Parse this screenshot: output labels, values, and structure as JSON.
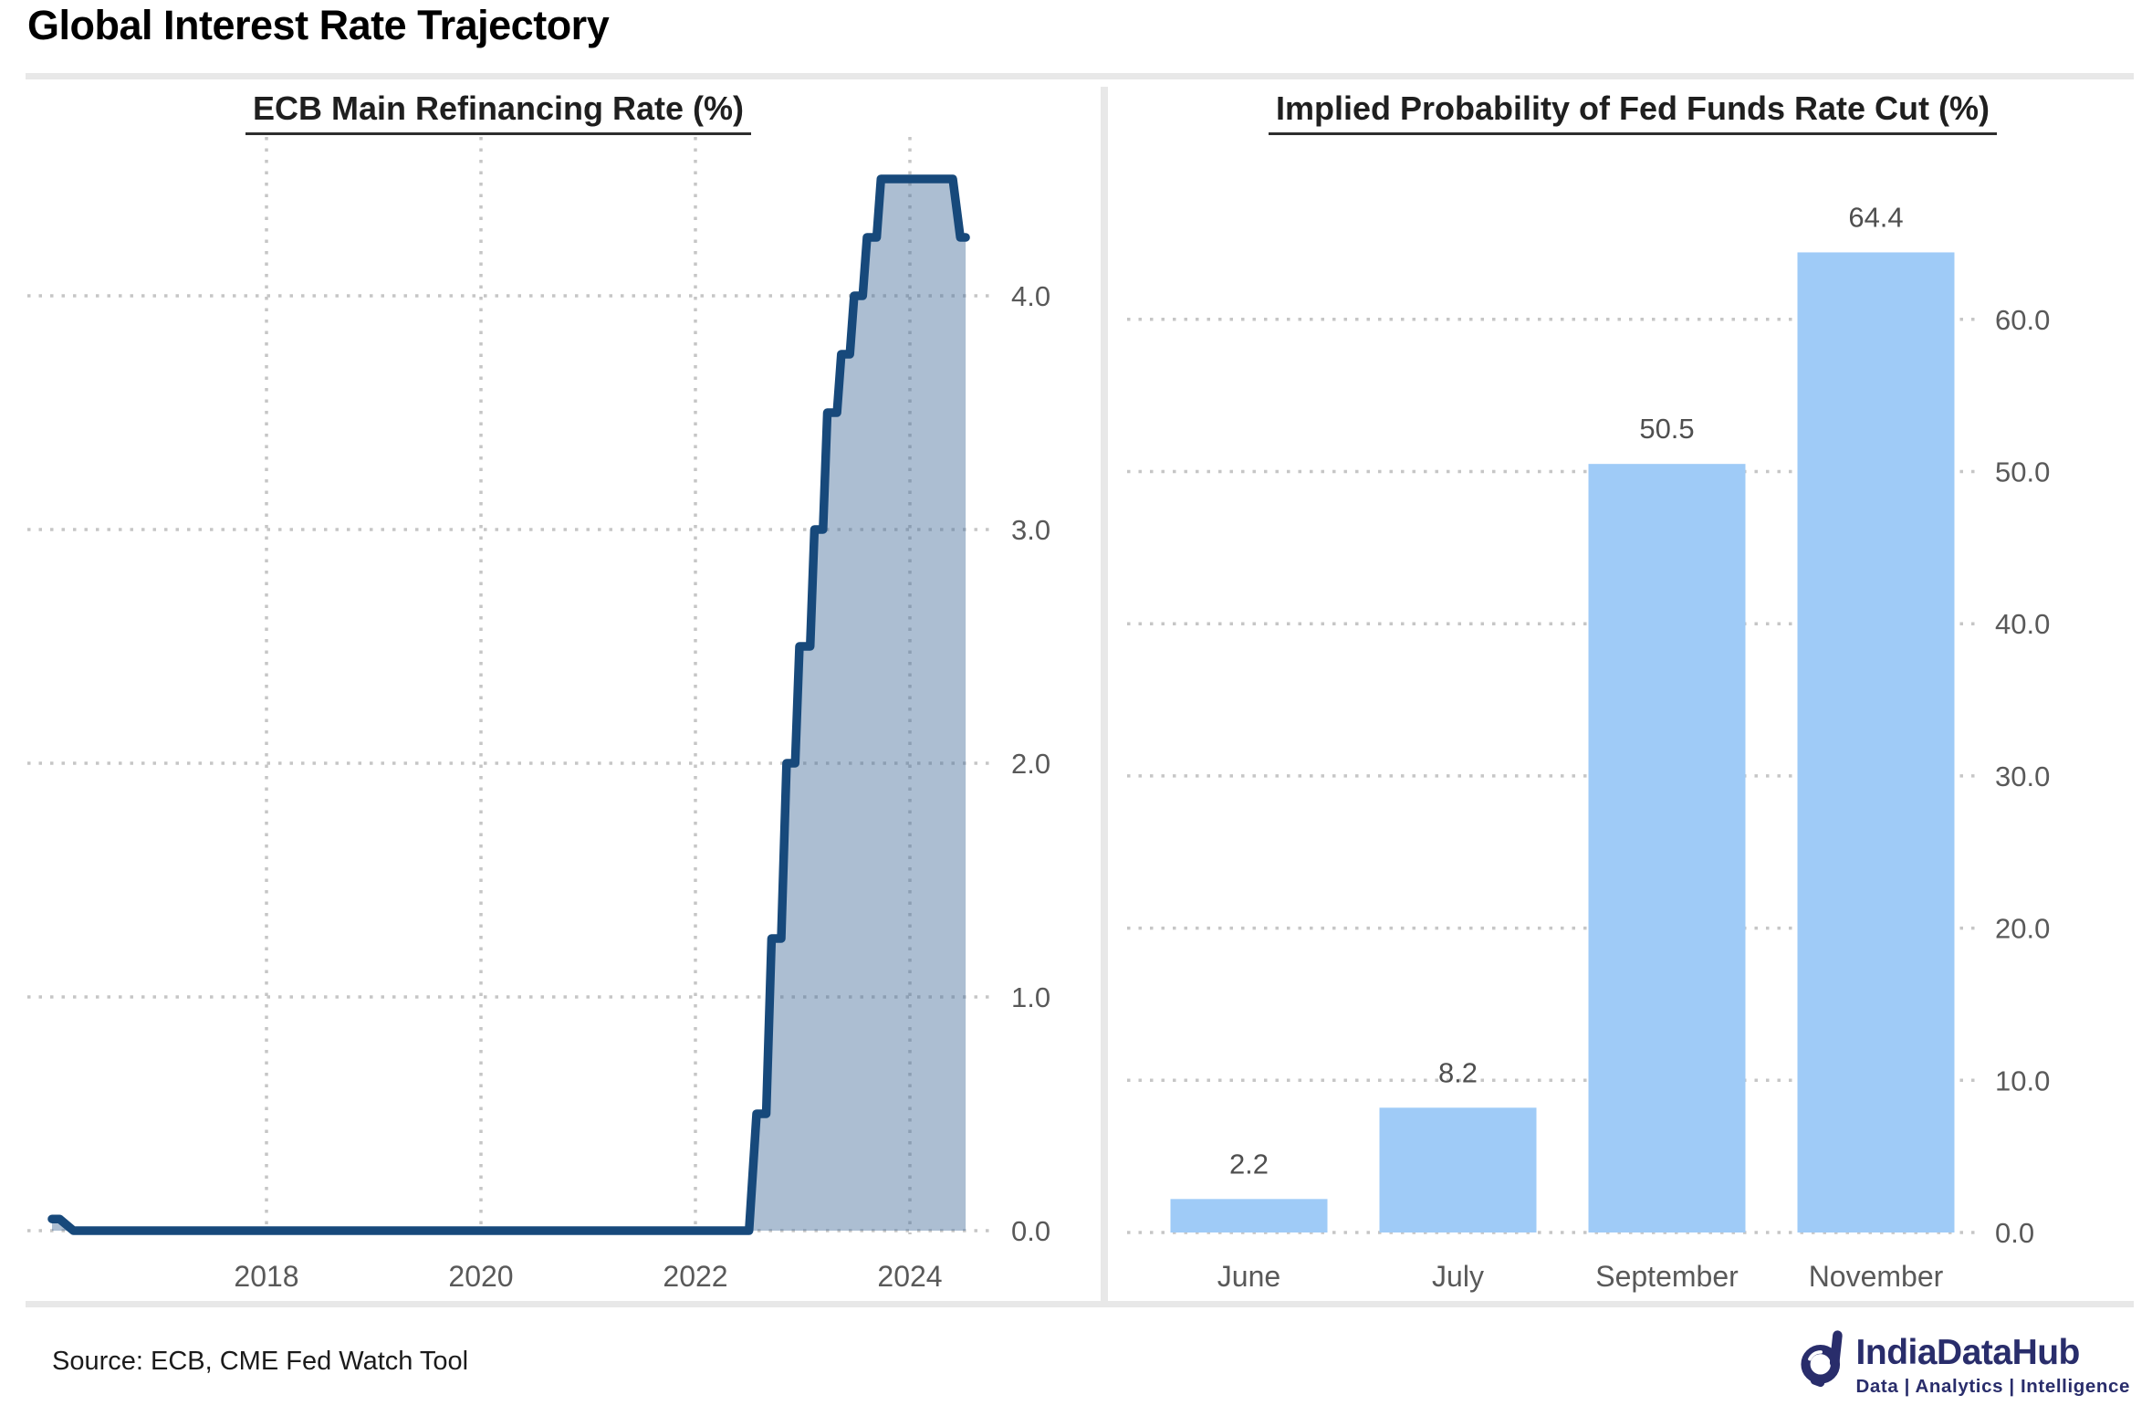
{
  "header": {
    "title": "Global Interest Rate Trajectory"
  },
  "colors": {
    "line": "#17497b",
    "area_fill": "rgba(70,110,155,0.45)",
    "bar": "#9fcbf7",
    "gridline": "#c6c6c6",
    "tick_text": "#595959",
    "divider": "#e8e8e8",
    "brand_navy": "#292d6b"
  },
  "chart_data": [
    {
      "type": "area",
      "title": "ECB Main Refinancing Rate (%)",
      "series_name": "ECB Main Refinancing Rate",
      "x_ticks": [
        2018,
        2020,
        2022,
        2024
      ],
      "y_ticks": [
        "0.0",
        "1.0",
        "2.0",
        "3.0",
        "4.0"
      ],
      "xlim": [
        2015.77,
        2024.81
      ],
      "ylim": [
        0,
        4.68
      ],
      "grid": "dotted",
      "legend": "none",
      "points": [
        [
          2016.0,
          0.05
        ],
        [
          2016.07,
          0.05
        ],
        [
          2016.2,
          0.0
        ],
        [
          2022.5,
          0.0
        ],
        [
          2022.57,
          0.5
        ],
        [
          2022.66,
          0.5
        ],
        [
          2022.71,
          1.25
        ],
        [
          2022.8,
          1.25
        ],
        [
          2022.85,
          2.0
        ],
        [
          2022.93,
          2.0
        ],
        [
          2022.97,
          2.5
        ],
        [
          2023.07,
          2.5
        ],
        [
          2023.11,
          3.0
        ],
        [
          2023.19,
          3.0
        ],
        [
          2023.23,
          3.5
        ],
        [
          2023.32,
          3.5
        ],
        [
          2023.36,
          3.75
        ],
        [
          2023.44,
          3.75
        ],
        [
          2023.48,
          4.0
        ],
        [
          2023.56,
          4.0
        ],
        [
          2023.6,
          4.25
        ],
        [
          2023.69,
          4.25
        ],
        [
          2023.73,
          4.5
        ],
        [
          2024.4,
          4.5
        ],
        [
          2024.47,
          4.25
        ],
        [
          2024.52,
          4.25
        ]
      ]
    },
    {
      "type": "bar",
      "title": "Implied Probability of Fed Funds Rate Cut (%)",
      "categories": [
        "June",
        "July",
        "September",
        "November"
      ],
      "values": [
        2.2,
        8.2,
        50.5,
        64.4
      ],
      "value_labels": [
        "2.2",
        "8.2",
        "50.5",
        "64.4"
      ],
      "y_ticks": [
        "0.0",
        "10.0",
        "20.0",
        "30.0",
        "40.0",
        "50.0",
        "60.0"
      ],
      "ylim": [
        0,
        66
      ],
      "grid": "dotted",
      "legend": "none"
    }
  ],
  "footer": {
    "source": "Source: ECB, CME Fed Watch Tool",
    "brand": "IndiaDataHub",
    "tagline": "Data | Analytics | Intelligence"
  }
}
